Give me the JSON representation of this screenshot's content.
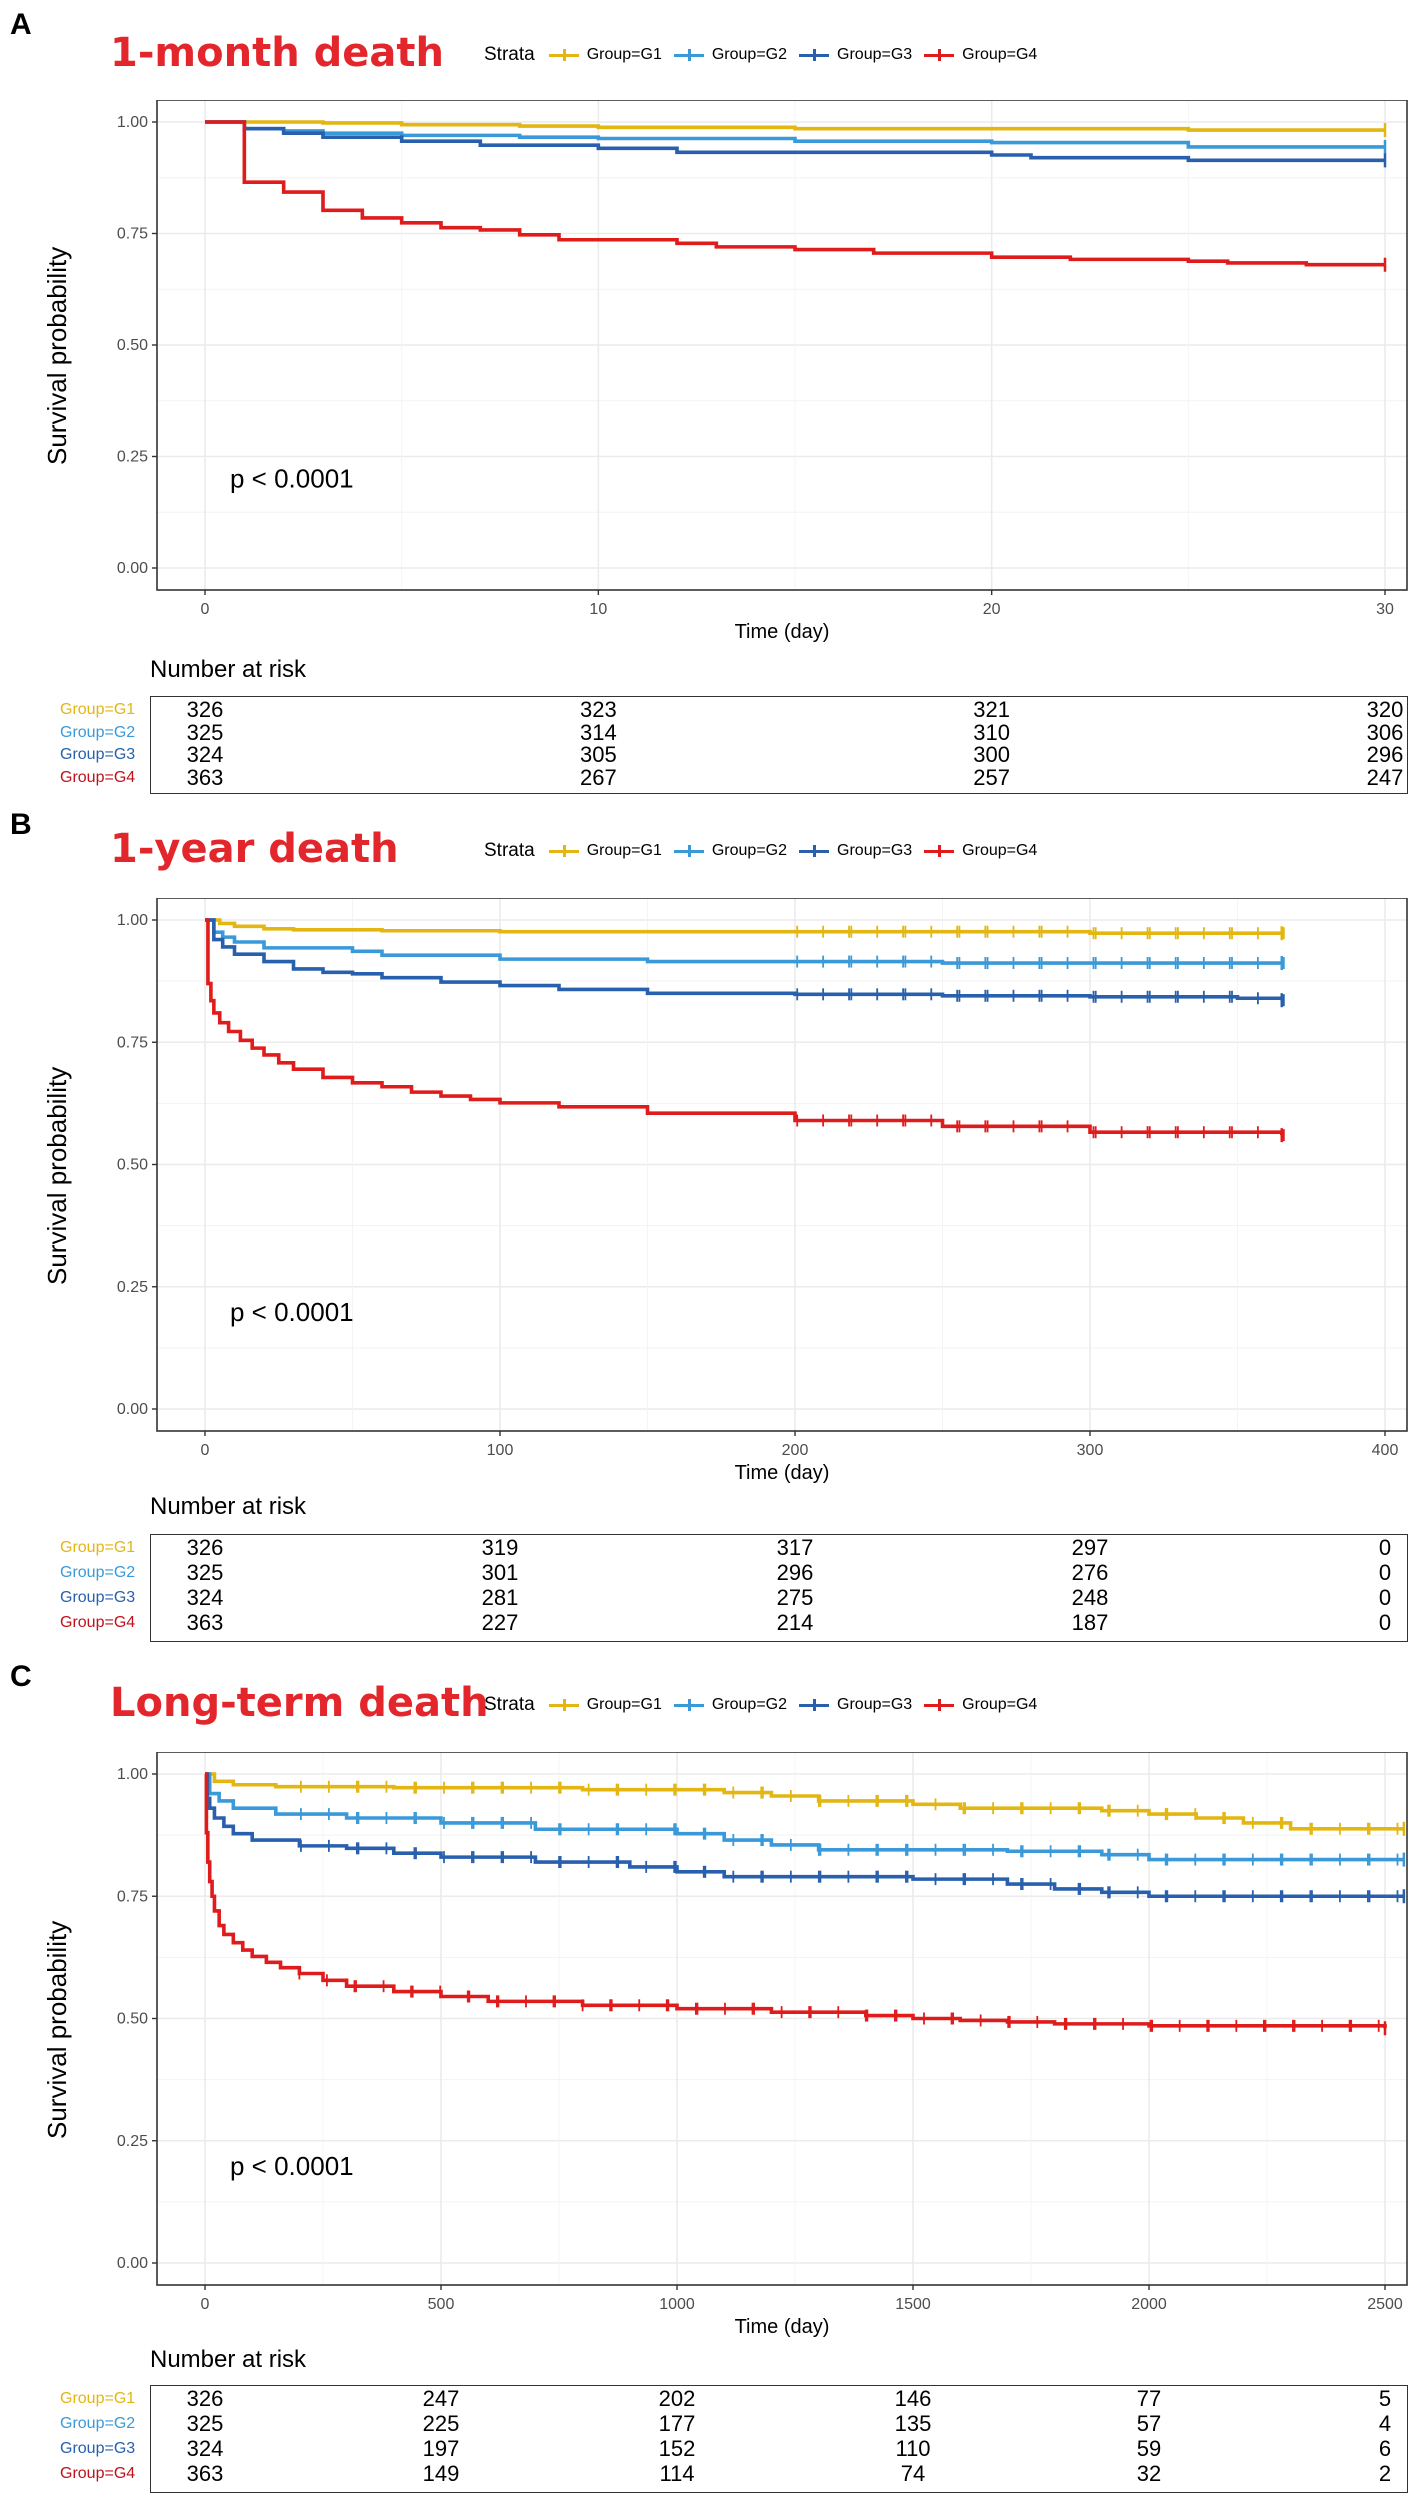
{
  "chart_data": [
    {
      "type": "line",
      "panel_letter": "A",
      "title": "1-month death",
      "xlabel": "Time (day)",
      "ylabel": "Survival probability",
      "xlim": [
        0,
        30
      ],
      "ylim": [
        0,
        1
      ],
      "x_ticks": [
        0,
        10,
        20,
        30
      ],
      "y_ticks": [
        "0.00",
        "0.25",
        "0.50",
        "0.75",
        "1.00"
      ],
      "legend_title": "Strata",
      "pvalue": "p < 0.0001",
      "series": [
        {
          "name": "Group=G1",
          "color": "#e3b612",
          "x": [
            0,
            1,
            3,
            5,
            8,
            10,
            15,
            20,
            25,
            30
          ],
          "y": [
            1.0,
            1.0,
            0.998,
            0.994,
            0.991,
            0.988,
            0.985,
            0.985,
            0.982,
            0.982
          ]
        },
        {
          "name": "Group=G2",
          "color": "#3a9ad9",
          "x": [
            0,
            1,
            2,
            3,
            5,
            8,
            10,
            15,
            20,
            25,
            30
          ],
          "y": [
            1.0,
            0.985,
            0.98,
            0.975,
            0.97,
            0.966,
            0.963,
            0.957,
            0.954,
            0.944,
            0.944
          ]
        },
        {
          "name": "Group=G3",
          "color": "#2860ad",
          "x": [
            0,
            1,
            2,
            3,
            5,
            7,
            10,
            12,
            15,
            20,
            21,
            25,
            30
          ],
          "y": [
            1.0,
            0.985,
            0.975,
            0.966,
            0.957,
            0.948,
            0.941,
            0.932,
            0.932,
            0.926,
            0.92,
            0.914,
            0.914
          ]
        },
        {
          "name": "Group=G4",
          "color": "#e01b1b",
          "x": [
            0,
            1,
            2,
            3,
            4,
            5,
            6,
            7,
            8,
            9,
            10,
            12,
            13,
            15,
            17,
            20,
            22,
            25,
            26,
            28,
            30
          ],
          "y": [
            1.0,
            0.865,
            0.843,
            0.802,
            0.785,
            0.774,
            0.763,
            0.758,
            0.747,
            0.736,
            0.736,
            0.728,
            0.72,
            0.714,
            0.706,
            0.697,
            0.692,
            0.688,
            0.684,
            0.68,
            0.68
          ]
        }
      ],
      "risk_table": {
        "title": "Number at risk",
        "times": [
          0,
          10,
          20,
          30
        ],
        "rows": [
          {
            "label": "Group=G1",
            "color": "#e3b612",
            "values": [
              "326",
              "323",
              "321",
              "320"
            ]
          },
          {
            "label": "Group=G2",
            "color": "#3a9ad9",
            "values": [
              "325",
              "314",
              "310",
              "306"
            ]
          },
          {
            "label": "Group=G3",
            "color": "#2860ad",
            "values": [
              "324",
              "305",
              "300",
              "296"
            ]
          },
          {
            "label": "Group=G4",
            "color": "#c0111b",
            "values": [
              "363",
              "267",
              "257",
              "247"
            ]
          }
        ]
      }
    },
    {
      "type": "line",
      "panel_letter": "B",
      "title": "1-year death",
      "xlabel": "Time (day)",
      "ylabel": "Survival probability",
      "xlim": [
        0,
        400
      ],
      "ylim": [
        0,
        1
      ],
      "x_ticks": [
        0,
        100,
        200,
        300,
        400
      ],
      "y_ticks": [
        "0.00",
        "0.25",
        "0.50",
        "0.75",
        "1.00"
      ],
      "legend_title": "Strata",
      "pvalue": "p < 0.0001",
      "series": [
        {
          "name": "Group=G1",
          "color": "#e3b612",
          "x": [
            0,
            5,
            10,
            20,
            30,
            60,
            100,
            200,
            300,
            365
          ],
          "y": [
            1.0,
            0.993,
            0.987,
            0.982,
            0.98,
            0.978,
            0.976,
            0.976,
            0.973,
            0.973
          ]
        },
        {
          "name": "Group=G2",
          "color": "#3a9ad9",
          "x": [
            0,
            3,
            6,
            10,
            20,
            50,
            60,
            100,
            150,
            200,
            250,
            365
          ],
          "y": [
            1.0,
            0.975,
            0.965,
            0.955,
            0.943,
            0.936,
            0.928,
            0.92,
            0.915,
            0.915,
            0.912,
            0.912
          ]
        },
        {
          "name": "Group=G3",
          "color": "#2860ad",
          "x": [
            0,
            3,
            6,
            10,
            20,
            30,
            40,
            50,
            60,
            80,
            100,
            120,
            150,
            200,
            250,
            300,
            350,
            365
          ],
          "y": [
            1.0,
            0.96,
            0.945,
            0.93,
            0.915,
            0.9,
            0.893,
            0.89,
            0.882,
            0.873,
            0.866,
            0.858,
            0.85,
            0.848,
            0.845,
            0.843,
            0.84,
            0.836
          ]
        },
        {
          "name": "Group=G4",
          "color": "#e01b1b",
          "x": [
            0,
            1,
            2,
            3,
            5,
            8,
            12,
            16,
            20,
            25,
            30,
            40,
            50,
            60,
            70,
            80,
            90,
            100,
            120,
            150,
            200,
            250,
            300,
            365
          ],
          "y": [
            1.0,
            0.87,
            0.835,
            0.81,
            0.79,
            0.772,
            0.754,
            0.738,
            0.724,
            0.708,
            0.695,
            0.678,
            0.667,
            0.659,
            0.648,
            0.64,
            0.633,
            0.626,
            0.618,
            0.605,
            0.59,
            0.578,
            0.566,
            0.56
          ]
        }
      ],
      "risk_table": {
        "title": "Number at risk",
        "times": [
          0,
          100,
          200,
          300,
          400
        ],
        "rows": [
          {
            "label": "Group=G1",
            "color": "#e3b612",
            "values": [
              "326",
              "319",
              "317",
              "297",
              "0"
            ]
          },
          {
            "label": "Group=G2",
            "color": "#3a9ad9",
            "values": [
              "325",
              "301",
              "296",
              "276",
              "0"
            ]
          },
          {
            "label": "Group=G3",
            "color": "#2860ad",
            "values": [
              "324",
              "281",
              "275",
              "248",
              "0"
            ]
          },
          {
            "label": "Group=G4",
            "color": "#c0111b",
            "values": [
              "363",
              "227",
              "214",
              "187",
              "0"
            ]
          }
        ]
      }
    },
    {
      "type": "line",
      "panel_letter": "C",
      "title": "Long-term death",
      "xlabel": "Time (day)",
      "ylabel": "Survival probability",
      "xlim": [
        0,
        2500
      ],
      "ylim": [
        0,
        1
      ],
      "x_ticks": [
        0,
        500,
        1000,
        1500,
        2000,
        2500
      ],
      "y_ticks": [
        "0.00",
        "0.25",
        "0.50",
        "0.75",
        "1.00"
      ],
      "legend_title": "Strata",
      "pvalue": "p < 0.0001",
      "series": [
        {
          "name": "Group=G1",
          "color": "#e3b612",
          "x": [
            0,
            20,
            60,
            150,
            400,
            800,
            1100,
            1200,
            1300,
            1500,
            1600,
            1900,
            2000,
            2100,
            2200,
            2300,
            2540
          ],
          "y": [
            1.0,
            0.985,
            0.978,
            0.974,
            0.972,
            0.968,
            0.962,
            0.955,
            0.945,
            0.938,
            0.93,
            0.925,
            0.918,
            0.91,
            0.9,
            0.888,
            0.888
          ]
        },
        {
          "name": "Group=G2",
          "color": "#3a9ad9",
          "x": [
            0,
            10,
            30,
            60,
            150,
            300,
            500,
            700,
            1000,
            1100,
            1200,
            1300,
            1700,
            1900,
            2000,
            2540
          ],
          "y": [
            1.0,
            0.96,
            0.945,
            0.93,
            0.918,
            0.91,
            0.9,
            0.887,
            0.878,
            0.865,
            0.855,
            0.845,
            0.842,
            0.835,
            0.825,
            0.825
          ]
        },
        {
          "name": "Group=G3",
          "color": "#2860ad",
          "x": [
            0,
            5,
            10,
            20,
            40,
            60,
            100,
            200,
            300,
            400,
            500,
            700,
            900,
            1000,
            1100,
            1500,
            1700,
            1800,
            1900,
            2000,
            2540
          ],
          "y": [
            1.0,
            0.95,
            0.93,
            0.91,
            0.893,
            0.878,
            0.865,
            0.853,
            0.848,
            0.838,
            0.83,
            0.82,
            0.81,
            0.8,
            0.79,
            0.785,
            0.775,
            0.765,
            0.758,
            0.75,
            0.75
          ]
        },
        {
          "name": "Group=G4",
          "color": "#e01b1b",
          "x": [
            0,
            3,
            6,
            10,
            15,
            20,
            30,
            40,
            60,
            80,
            100,
            130,
            160,
            200,
            250,
            300,
            400,
            500,
            600,
            800,
            1000,
            1200,
            1400,
            1500,
            1600,
            1700,
            1800,
            2000,
            2500
          ],
          "y": [
            1.0,
            0.88,
            0.82,
            0.78,
            0.75,
            0.72,
            0.69,
            0.672,
            0.655,
            0.64,
            0.627,
            0.615,
            0.604,
            0.592,
            0.578,
            0.566,
            0.555,
            0.545,
            0.535,
            0.527,
            0.52,
            0.513,
            0.506,
            0.5,
            0.496,
            0.493,
            0.489,
            0.485,
            0.48
          ]
        }
      ],
      "risk_table": {
        "title": "Number at risk",
        "times": [
          0,
          500,
          1000,
          1500,
          2000,
          2500
        ],
        "rows": [
          {
            "label": "Group=G1",
            "color": "#e3b612",
            "values": [
              "326",
              "247",
              "202",
              "146",
              "77",
              "5"
            ]
          },
          {
            "label": "Group=G2",
            "color": "#3a9ad9",
            "values": [
              "325",
              "225",
              "177",
              "135",
              "57",
              "4"
            ]
          },
          {
            "label": "Group=G3",
            "color": "#2860ad",
            "values": [
              "324",
              "197",
              "152",
              "110",
              "59",
              "6"
            ]
          },
          {
            "label": "Group=G4",
            "color": "#c0111b",
            "values": [
              "363",
              "149",
              "114",
              "74",
              "32",
              "2"
            ]
          }
        ]
      }
    }
  ]
}
